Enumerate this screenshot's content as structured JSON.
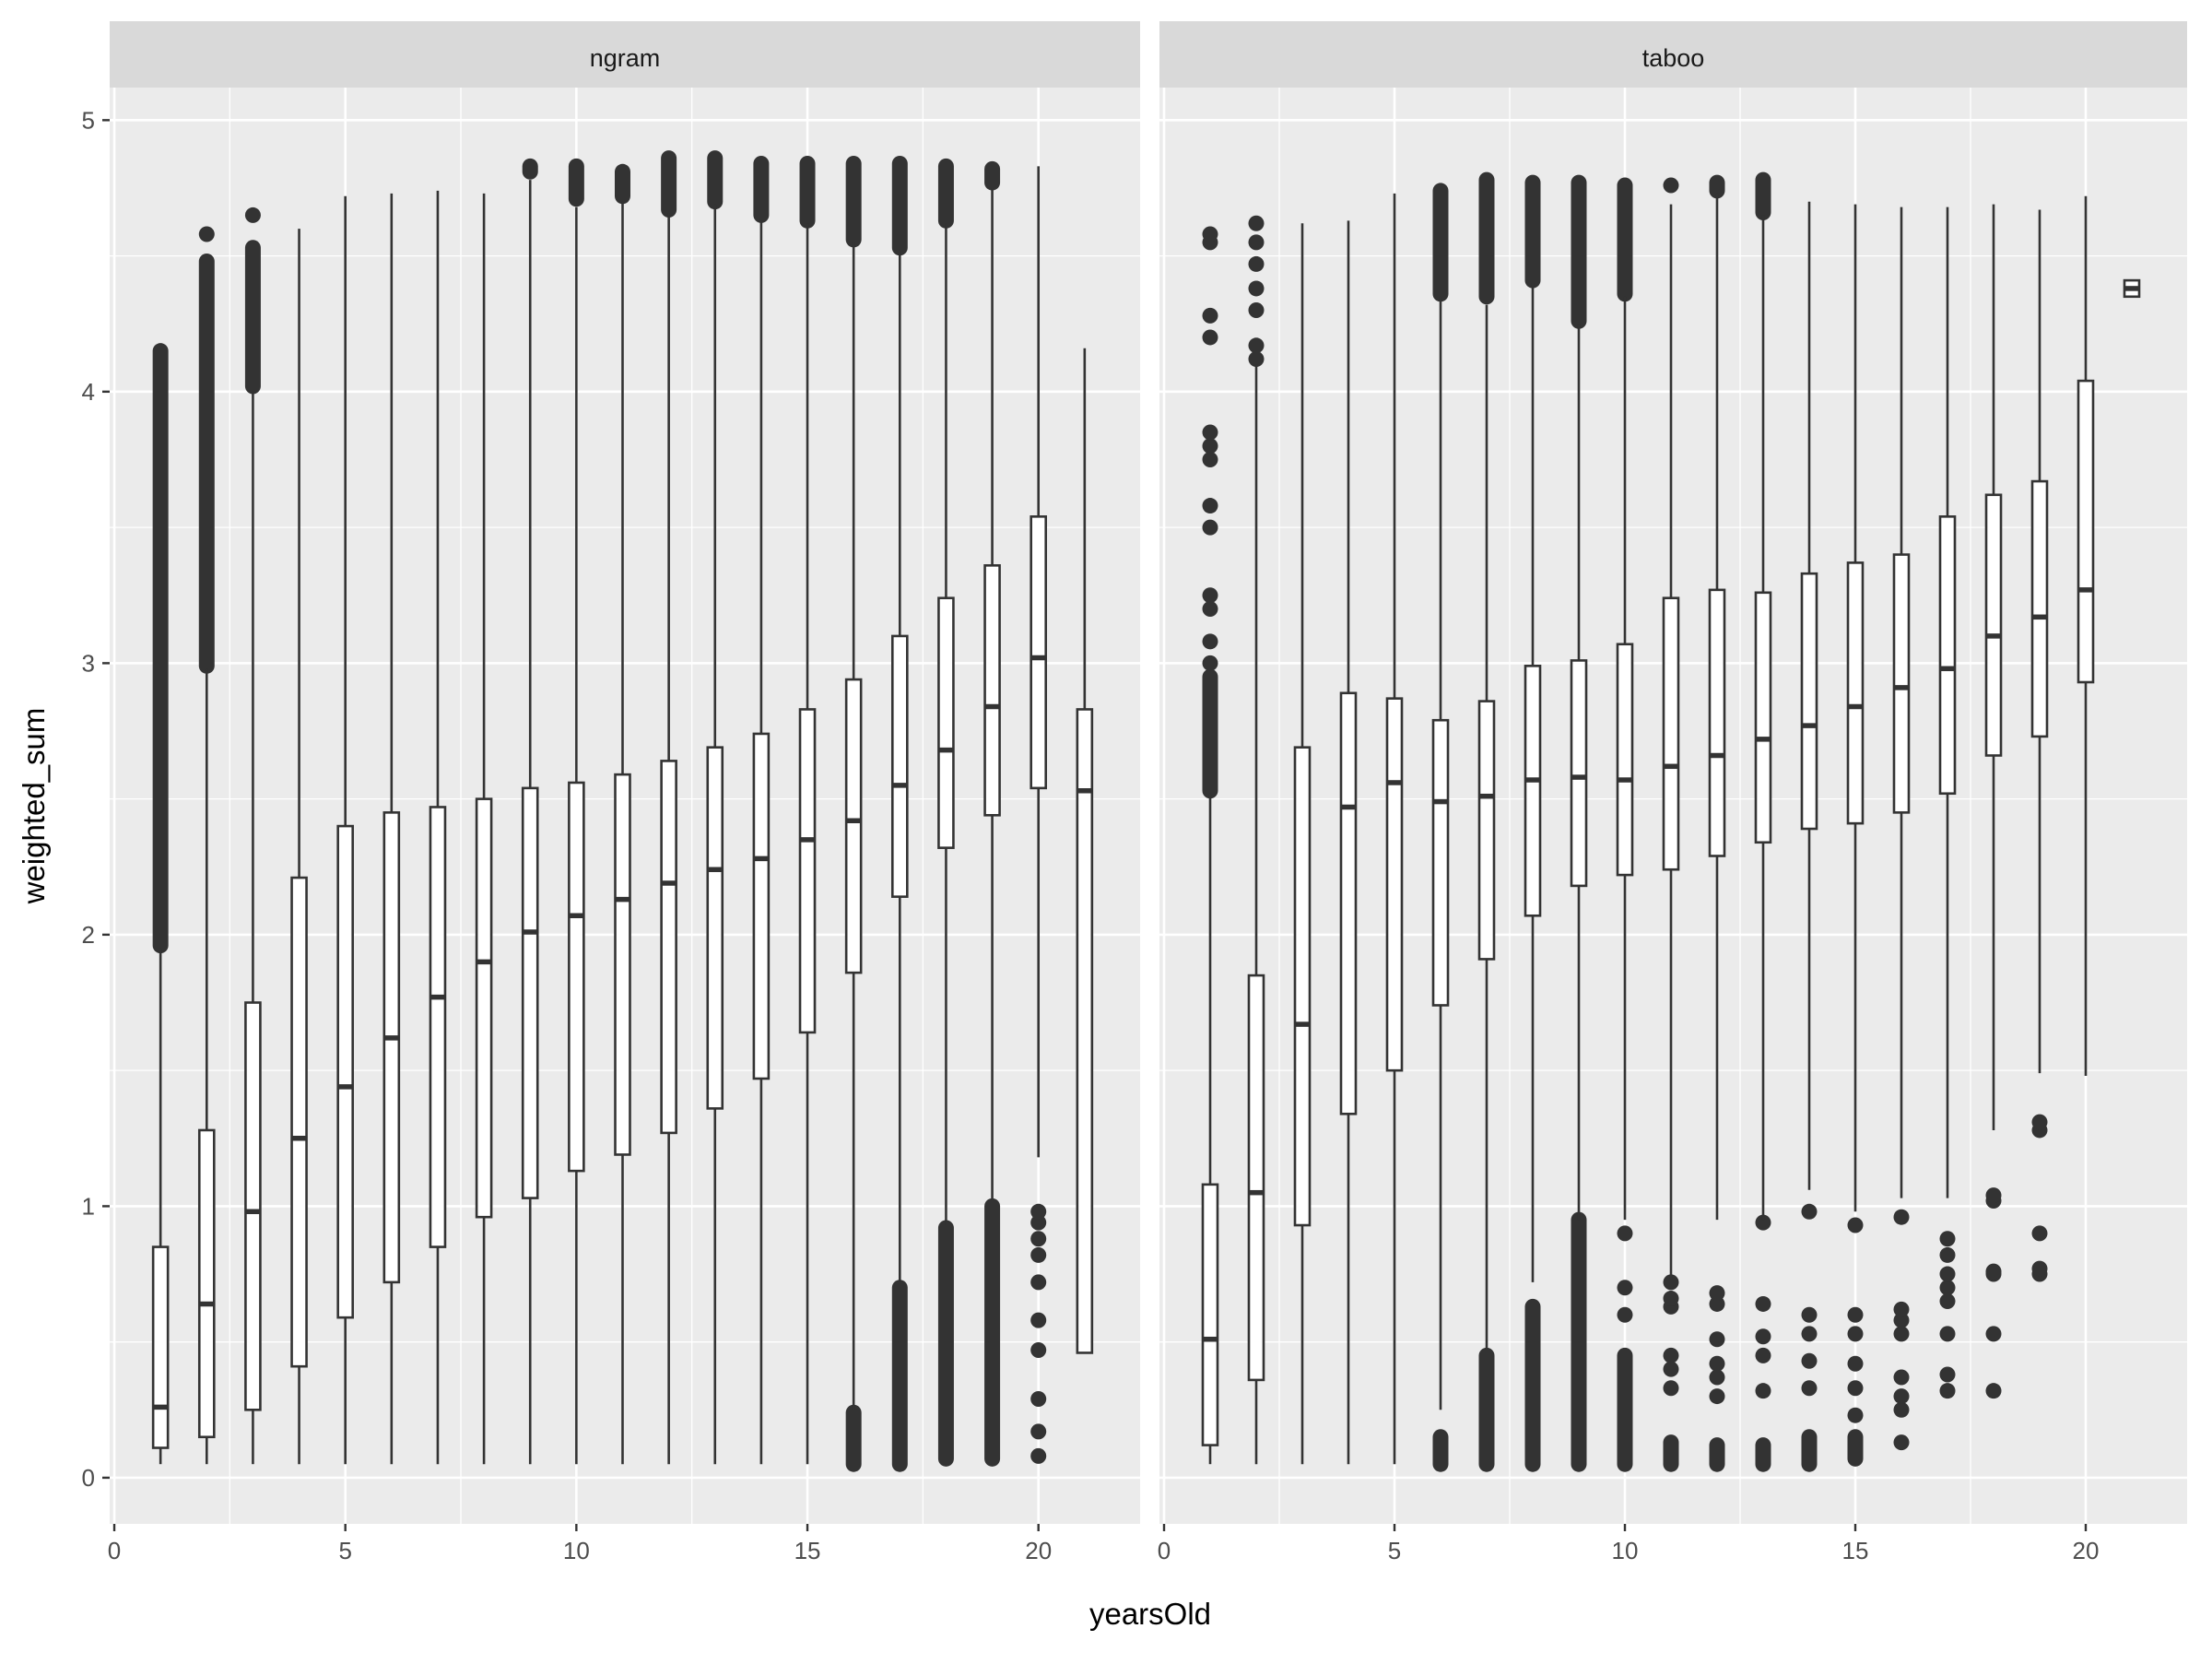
{
  "chart_data": {
    "type": "boxplot",
    "xlabel": "yearsOld",
    "ylabel": "weighted_sum",
    "xlim": [
      -0.1,
      22.2
    ],
    "ylim": [
      -0.17,
      5.12
    ],
    "x_ticks": [
      0,
      5,
      10,
      15,
      20
    ],
    "y_ticks": [
      0,
      1,
      2,
      3,
      4,
      5
    ],
    "grid": true,
    "colors": {
      "panel": "#EBEBEB",
      "strip": "#D9D9D9",
      "grid": "#FFFFFF",
      "box": "#333333",
      "text": "#4D4D4D"
    },
    "panels": [
      {
        "name": "ngram",
        "boxes": [
          {
            "x": 1,
            "lower": 0.05,
            "q1": 0.11,
            "median": 0.26,
            "q3": 0.85,
            "upper": 1.95,
            "outlier_ranges": [
              [
                1.96,
                4.15
              ]
            ],
            "outliers": []
          },
          {
            "x": 2,
            "lower": 0.05,
            "q1": 0.15,
            "median": 0.64,
            "q3": 1.28,
            "upper": 2.98,
            "outlier_ranges": [
              [
                2.99,
                4.48
              ]
            ],
            "outliers": [
              4.58
            ]
          },
          {
            "x": 3,
            "lower": 0.05,
            "q1": 0.25,
            "median": 0.98,
            "q3": 1.75,
            "upper": 4.0,
            "outlier_ranges": [
              [
                4.02,
                4.53
              ]
            ],
            "outliers": [
              4.65
            ]
          },
          {
            "x": 4,
            "lower": 0.05,
            "q1": 0.41,
            "median": 1.25,
            "q3": 2.21,
            "upper": 4.6,
            "outlier_ranges": [],
            "outliers": []
          },
          {
            "x": 5,
            "lower": 0.05,
            "q1": 0.59,
            "median": 1.44,
            "q3": 2.4,
            "upper": 4.72,
            "outlier_ranges": [],
            "outliers": []
          },
          {
            "x": 6,
            "lower": 0.05,
            "q1": 0.72,
            "median": 1.62,
            "q3": 2.45,
            "upper": 4.73,
            "outlier_ranges": [],
            "outliers": []
          },
          {
            "x": 7,
            "lower": 0.05,
            "q1": 0.85,
            "median": 1.77,
            "q3": 2.47,
            "upper": 4.74,
            "outlier_ranges": [],
            "outliers": []
          },
          {
            "x": 8,
            "lower": 0.05,
            "q1": 0.96,
            "median": 1.9,
            "q3": 2.5,
            "upper": 4.73,
            "outlier_ranges": [],
            "outliers": []
          },
          {
            "x": 9,
            "lower": 0.05,
            "q1": 1.03,
            "median": 2.01,
            "q3": 2.54,
            "upper": 4.78,
            "outlier_ranges": [
              [
                4.81,
                4.83
              ]
            ],
            "outliers": []
          },
          {
            "x": 10,
            "lower": 0.05,
            "q1": 1.13,
            "median": 2.07,
            "q3": 2.56,
            "upper": 4.68,
            "outlier_ranges": [
              [
                4.71,
                4.83
              ]
            ],
            "outliers": []
          },
          {
            "x": 11,
            "lower": 0.05,
            "q1": 1.19,
            "median": 2.13,
            "q3": 2.59,
            "upper": 4.7,
            "outlier_ranges": [
              [
                4.72,
                4.81
              ]
            ],
            "outliers": []
          },
          {
            "x": 12,
            "lower": 0.05,
            "q1": 1.27,
            "median": 2.19,
            "q3": 2.64,
            "upper": 4.66,
            "outlier_ranges": [
              [
                4.67,
                4.86
              ]
            ],
            "outliers": []
          },
          {
            "x": 13,
            "lower": 0.05,
            "q1": 1.36,
            "median": 2.24,
            "q3": 2.69,
            "upper": 4.69,
            "outlier_ranges": [
              [
                4.7,
                4.86
              ]
            ],
            "outliers": []
          },
          {
            "x": 14,
            "lower": 0.05,
            "q1": 1.47,
            "median": 2.28,
            "q3": 2.74,
            "upper": 4.64,
            "outlier_ranges": [
              [
                4.65,
                4.84
              ]
            ],
            "outliers": []
          },
          {
            "x": 15,
            "lower": 0.05,
            "q1": 1.64,
            "median": 2.35,
            "q3": 2.83,
            "upper": 4.62,
            "outlier_ranges": [
              [
                4.63,
                4.84
              ]
            ],
            "outliers": []
          },
          {
            "x": 16,
            "lower": 0.25,
            "q1": 1.86,
            "median": 2.42,
            "q3": 2.94,
            "upper": 4.55,
            "outlier_ranges": [
              [
                4.56,
                4.84
              ],
              [
                0.05,
                0.24
              ]
            ],
            "outliers": []
          },
          {
            "x": 17,
            "lower": 0.72,
            "q1": 2.14,
            "median": 2.55,
            "q3": 3.1,
            "upper": 4.52,
            "outlier_ranges": [
              [
                4.53,
                4.84
              ],
              [
                0.05,
                0.7
              ]
            ],
            "outliers": []
          },
          {
            "x": 18,
            "lower": 0.93,
            "q1": 2.32,
            "median": 2.68,
            "q3": 3.24,
            "upper": 4.62,
            "outlier_ranges": [
              [
                4.63,
                4.83
              ],
              [
                0.07,
                0.92
              ]
            ],
            "outliers": []
          },
          {
            "x": 19,
            "lower": 1.02,
            "q1": 2.44,
            "median": 2.84,
            "q3": 3.36,
            "upper": 4.75,
            "outlier_ranges": [
              [
                4.77,
                4.82
              ],
              [
                0.07,
                1.0
              ]
            ],
            "outliers": []
          },
          {
            "x": 20,
            "lower": 1.18,
            "q1": 2.54,
            "median": 3.02,
            "q3": 3.54,
            "upper": 4.83,
            "outlier_ranges": [],
            "outliers": [
              0.08,
              0.17,
              0.29,
              0.47,
              0.58,
              0.72,
              0.82,
              0.88,
              0.94,
              0.98
            ]
          },
          {
            "x": 21,
            "lower": 0.46,
            "q1": 0.46,
            "median": 2.53,
            "q3": 2.83,
            "upper": 4.16,
            "outlier_ranges": [],
            "outliers": []
          }
        ]
      },
      {
        "name": "taboo",
        "boxes": [
          {
            "x": 1,
            "lower": 0.05,
            "q1": 0.12,
            "median": 0.51,
            "q3": 1.08,
            "upper": 2.52,
            "outlier_ranges": [
              [
                2.53,
                2.95
              ]
            ],
            "outliers": [
              3.0,
              3.08,
              3.2,
              3.25,
              3.5,
              3.58,
              3.75,
              3.8,
              3.85,
              4.2,
              4.28,
              4.55,
              4.58
            ]
          },
          {
            "x": 2,
            "lower": 0.05,
            "q1": 0.36,
            "median": 1.05,
            "q3": 1.85,
            "upper": 4.1,
            "outlier_ranges": [],
            "outliers": [
              4.12,
              4.17,
              4.3,
              4.38,
              4.47,
              4.55,
              4.62
            ]
          },
          {
            "x": 3,
            "lower": 0.05,
            "q1": 0.93,
            "median": 1.67,
            "q3": 2.69,
            "upper": 4.62,
            "outlier_ranges": [],
            "outliers": []
          },
          {
            "x": 4,
            "lower": 0.05,
            "q1": 1.34,
            "median": 2.47,
            "q3": 2.89,
            "upper": 4.63,
            "outlier_ranges": [],
            "outliers": []
          },
          {
            "x": 5,
            "lower": 0.05,
            "q1": 1.5,
            "median": 2.56,
            "q3": 2.87,
            "upper": 4.73,
            "outlier_ranges": [],
            "outliers": []
          },
          {
            "x": 6,
            "lower": 0.25,
            "q1": 1.74,
            "median": 2.49,
            "q3": 2.79,
            "upper": 4.35,
            "outlier_ranges": [
              [
                4.36,
                4.74
              ],
              [
                0.05,
                0.15
              ]
            ],
            "outliers": []
          },
          {
            "x": 7,
            "lower": 0.47,
            "q1": 1.91,
            "median": 2.51,
            "q3": 2.86,
            "upper": 4.32,
            "outlier_ranges": [
              [
                4.35,
                4.78
              ],
              [
                0.05,
                0.45
              ]
            ],
            "outliers": []
          },
          {
            "x": 8,
            "lower": 0.72,
            "q1": 2.07,
            "median": 2.57,
            "q3": 2.99,
            "upper": 4.4,
            "outlier_ranges": [
              [
                4.41,
                4.77
              ],
              [
                0.05,
                0.63
              ]
            ],
            "outliers": []
          },
          {
            "x": 9,
            "lower": 0.95,
            "q1": 2.18,
            "median": 2.58,
            "q3": 3.01,
            "upper": 4.25,
            "outlier_ranges": [
              [
                4.26,
                4.77
              ],
              [
                0.05,
                0.95
              ]
            ],
            "outliers": []
          },
          {
            "x": 10,
            "lower": 0.95,
            "q1": 2.22,
            "median": 2.57,
            "q3": 3.07,
            "upper": 4.35,
            "outlier_ranges": [
              [
                4.36,
                4.76
              ],
              [
                0.05,
                0.45
              ]
            ],
            "outliers": [
              0.6,
              0.7,
              0.9
            ]
          },
          {
            "x": 11,
            "lower": 0.73,
            "q1": 2.24,
            "median": 2.62,
            "q3": 3.24,
            "upper": 4.69,
            "outlier_ranges": [
              [
                0.05,
                0.13
              ]
            ],
            "outliers": [
              0.33,
              0.4,
              0.45,
              0.63,
              0.66,
              0.72,
              4.76
            ]
          },
          {
            "x": 12,
            "lower": 0.95,
            "q1": 2.29,
            "median": 2.66,
            "q3": 3.27,
            "upper": 4.73,
            "outlier_ranges": [
              [
                4.74,
                4.77
              ],
              [
                0.05,
                0.12
              ]
            ],
            "outliers": [
              0.3,
              0.37,
              0.42,
              0.51,
              0.64,
              0.68
            ]
          },
          {
            "x": 13,
            "lower": 0.95,
            "q1": 2.34,
            "median": 2.72,
            "q3": 3.26,
            "upper": 4.65,
            "outlier_ranges": [
              [
                4.66,
                4.78
              ],
              [
                0.05,
                0.12
              ]
            ],
            "outliers": [
              0.32,
              0.45,
              0.52,
              0.64,
              0.94
            ]
          },
          {
            "x": 14,
            "lower": 1.06,
            "q1": 2.39,
            "median": 2.77,
            "q3": 3.33,
            "upper": 4.7,
            "outlier_ranges": [
              [
                0.05,
                0.15
              ]
            ],
            "outliers": [
              0.33,
              0.43,
              0.53,
              0.6,
              0.98
            ]
          },
          {
            "x": 15,
            "lower": 0.98,
            "q1": 2.41,
            "median": 2.84,
            "q3": 3.37,
            "upper": 4.69,
            "outlier_ranges": [
              [
                0.07,
                0.15
              ]
            ],
            "outliers": [
              0.23,
              0.33,
              0.42,
              0.53,
              0.6,
              0.93
            ]
          },
          {
            "x": 16,
            "lower": 1.03,
            "q1": 2.45,
            "median": 2.91,
            "q3": 3.4,
            "upper": 4.68,
            "outlier_ranges": [],
            "outliers": [
              0.13,
              0.25,
              0.3,
              0.37,
              0.53,
              0.58,
              0.62,
              0.96
            ]
          },
          {
            "x": 17,
            "lower": 1.03,
            "q1": 2.52,
            "median": 2.98,
            "q3": 3.54,
            "upper": 4.68,
            "outlier_ranges": [],
            "outliers": [
              0.32,
              0.38,
              0.53,
              0.65,
              0.7,
              0.75,
              0.82,
              0.88
            ]
          },
          {
            "x": 18,
            "lower": 1.28,
            "q1": 2.66,
            "median": 3.1,
            "q3": 3.62,
            "upper": 4.69,
            "outlier_ranges": [],
            "outliers": [
              0.32,
              0.53,
              0.75,
              0.76,
              1.02,
              1.04
            ]
          },
          {
            "x": 19,
            "lower": 1.49,
            "q1": 2.73,
            "median": 3.17,
            "q3": 3.67,
            "upper": 4.67,
            "outlier_ranges": [],
            "outliers": [
              0.75,
              0.77,
              0.9,
              1.28,
              1.31
            ]
          },
          {
            "x": 20,
            "lower": 1.48,
            "q1": 2.93,
            "median": 3.27,
            "q3": 4.04,
            "upper": 4.72,
            "outlier_ranges": [],
            "outliers": []
          },
          {
            "x": 21,
            "lower": 4.35,
            "q1": 4.35,
            "median": 4.38,
            "q3": 4.41,
            "upper": 4.41,
            "outlier_ranges": [],
            "outliers": []
          }
        ]
      }
    ]
  }
}
